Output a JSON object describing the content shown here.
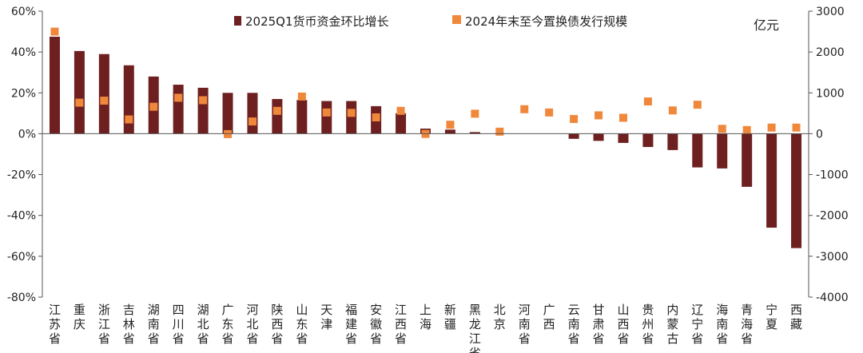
{
  "chart_data": {
    "type": "bar",
    "title": "",
    "unit_right": "亿元",
    "colors": {
      "bar": "#6e1f1f",
      "marker": "#f0883c",
      "axis": "#555555"
    },
    "left_axis": {
      "min": -80,
      "max": 60,
      "step": 20,
      "tick_labels": [
        "60%",
        "40%",
        "20%",
        "0%",
        "-20%",
        "-40%",
        "-60%",
        "-80%"
      ]
    },
    "right_axis": {
      "min": -4000,
      "max": 3000,
      "step": 1000,
      "tick_labels": [
        "3000",
        "2000",
        "1000",
        "0",
        "-1000",
        "-2000",
        "-3000",
        "-4000"
      ]
    },
    "legend": {
      "position": "top-center"
    },
    "categories": [
      "江苏省",
      "重庆",
      "浙江省",
      "吉林省",
      "湖南省",
      "四川省",
      "湖北省",
      "广东省",
      "河北省",
      "陕西省",
      "山东省",
      "天津",
      "福建省",
      "安徽省",
      "江西省",
      "上海",
      "新疆",
      "黑龙江省",
      "北京",
      "河南省",
      "广西",
      "云南省",
      "甘肃省",
      "山西省",
      "贵州省",
      "内蒙古",
      "辽宁省",
      "海南省",
      "青海省",
      "宁夏",
      "西藏"
    ],
    "series": [
      {
        "name": "2025Q1货币资金环比增长",
        "type": "bar",
        "axis": "left",
        "values": [
          47.5,
          40.5,
          39,
          33.5,
          28,
          24,
          22.5,
          20,
          20,
          17,
          16.5,
          16,
          16,
          13.5,
          10,
          2.5,
          2,
          0.8,
          0.2,
          0,
          0,
          -2.5,
          -3.5,
          -4.5,
          -6.5,
          -8,
          -16.5,
          -17,
          -26,
          -46,
          -56
        ]
      },
      {
        "name": "2024年末至今置换债发行规模",
        "type": "scatter",
        "axis": "right",
        "values": [
          2500,
          760,
          810,
          350,
          660,
          880,
          820,
          -10,
          300,
          560,
          910,
          520,
          510,
          400,
          560,
          -5,
          220,
          490,
          50,
          600,
          520,
          360,
          450,
          390,
          790,
          570,
          710,
          120,
          90,
          150,
          150
        ]
      }
    ]
  }
}
